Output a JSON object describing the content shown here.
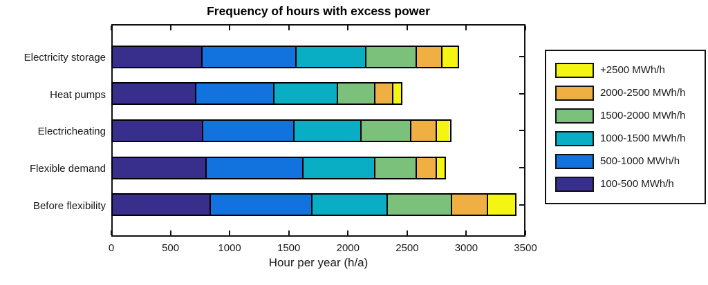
{
  "chart_data": {
    "type": "bar",
    "orientation": "horizontal",
    "stacked": true,
    "title": "Frequency of hours with excess power",
    "xlabel": "Hour per year (h/a)",
    "xlim": [
      0,
      3500
    ],
    "x_ticks": [
      0,
      500,
      1000,
      1500,
      2000,
      2500,
      3000,
      3500
    ],
    "grid": false,
    "categories": [
      "Electricity storage",
      "Heat pumps",
      "Electricheating",
      "Flexible demand",
      "Before flexibility"
    ],
    "series": [
      {
        "name": "100-500 MWh/h",
        "color": "#382E8C",
        "values": [
          750,
          700,
          755,
          785,
          820
        ]
      },
      {
        "name": "500-1000 MWh/h",
        "color": "#1272DE",
        "values": [
          800,
          660,
          775,
          825,
          865
        ]
      },
      {
        "name": "1000-1500 MWh/h",
        "color": "#09AEC4",
        "values": [
          590,
          540,
          570,
          610,
          635
        ]
      },
      {
        "name": "1500-2000 MWh/h",
        "color": "#7CC17B",
        "values": [
          430,
          320,
          420,
          350,
          550
        ]
      },
      {
        "name": "2000-2500 MWh/h",
        "color": "#EFAF42",
        "values": [
          220,
          150,
          220,
          170,
          300
        ]
      },
      {
        "name": "+2500 MWh/h",
        "color": "#F4F513",
        "values": [
          140,
          80,
          120,
          75,
          240
        ]
      }
    ],
    "totals": [
      2930,
      2450,
      2860,
      2815,
      3410
    ],
    "legend": {
      "position": "right",
      "order_top_to_bottom": [
        "+2500 MWh/h",
        "2000-2500 MWh/h",
        "1500-2000 MWh/h",
        "1000-1500 MWh/h",
        "500-1000 MWh/h",
        "100-500 MWh/h"
      ]
    }
  }
}
